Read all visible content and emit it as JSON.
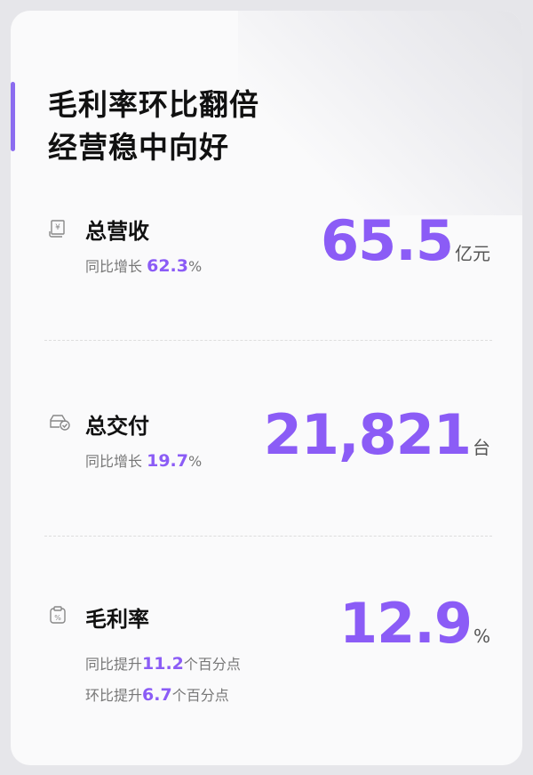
{
  "headline": {
    "line1": "毛利率环比翻倍",
    "line2": "经营稳中向好"
  },
  "accent_color": "#8b5cf6",
  "metrics": [
    {
      "icon": "receipt-yen-icon",
      "label": "总营收",
      "value": "65.5",
      "unit": "亿元",
      "sub_prefix": "同比增长 ",
      "sub_value": "62.3",
      "sub_suffix": "%"
    },
    {
      "icon": "car-check-icon",
      "label": "总交付",
      "value": "21,821",
      "unit": "台",
      "sub_prefix": "同比增长 ",
      "sub_value": "19.7",
      "sub_suffix": "%"
    },
    {
      "icon": "clipboard-percent-icon",
      "label": "毛利率",
      "value": "12.9",
      "unit": "%",
      "lines": [
        {
          "prefix": "同比提升",
          "value": "11.2",
          "suffix": "个百分点"
        },
        {
          "prefix": "环比提升",
          "value": "6.7",
          "suffix": "个百分点"
        }
      ]
    }
  ]
}
